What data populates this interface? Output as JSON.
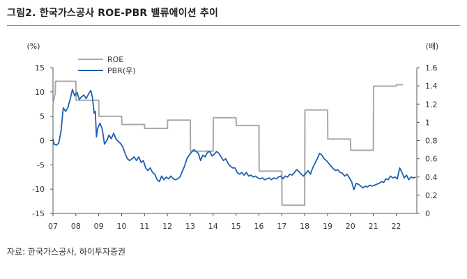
{
  "figure": {
    "title": "그림2.  한국가스공사 ROE-PBR 밸류에이션 추이",
    "source": "자료: 한국가스공사, 하이투자증권"
  },
  "chart_data": {
    "type": "line",
    "left_axis_unit": "(%)",
    "right_axis_unit": "(배)",
    "x_ticks": [
      "07",
      "08",
      "09",
      "10",
      "11",
      "12",
      "13",
      "14",
      "15",
      "16",
      "17",
      "18",
      "19",
      "20",
      "21",
      "22"
    ],
    "y_left": {
      "min": -15,
      "max": 15,
      "ticks": [
        "15",
        "10",
        "5",
        "0",
        "-5",
        "-10",
        "-15"
      ]
    },
    "y_right": {
      "min": 0,
      "max": 1.6,
      "ticks": [
        "1.6",
        "1.4",
        "1.2",
        "1",
        "0.8",
        "0.6",
        "0.4",
        "0.2",
        "0"
      ]
    },
    "legend_position": "top-left",
    "series": [
      {
        "name": "ROE",
        "axis": "left",
        "color": "#a9a9a9",
        "points": [
          [
            2007.0,
            7.5
          ],
          [
            2007.1,
            9.8
          ],
          [
            2007.11,
            12.2
          ],
          [
            2008.0,
            12.2
          ],
          [
            2008.01,
            8.3
          ],
          [
            2009.0,
            8.3
          ],
          [
            2009.01,
            5.0
          ],
          [
            2010.0,
            5.0
          ],
          [
            2010.01,
            3.3
          ],
          [
            2011.0,
            3.3
          ],
          [
            2011.01,
            2.5
          ],
          [
            2012.0,
            2.5
          ],
          [
            2012.01,
            4.2
          ],
          [
            2013.0,
            4.2
          ],
          [
            2013.01,
            -2.2
          ],
          [
            2014.0,
            -2.2
          ],
          [
            2014.01,
            4.7
          ],
          [
            2015.0,
            4.7
          ],
          [
            2015.01,
            3.1
          ],
          [
            2016.0,
            3.1
          ],
          [
            2016.01,
            -6.3
          ],
          [
            2017.0,
            -6.3
          ],
          [
            2017.01,
            -13.3
          ],
          [
            2018.0,
            -13.3
          ],
          [
            2018.01,
            6.3
          ],
          [
            2019.0,
            6.3
          ],
          [
            2019.01,
            0.3
          ],
          [
            2020.0,
            0.3
          ],
          [
            2020.01,
            -2.0
          ],
          [
            2021.0,
            -2.0
          ],
          [
            2021.01,
            11.2
          ],
          [
            2022.0,
            11.2
          ],
          [
            2022.01,
            11.5
          ],
          [
            2022.3,
            11.5
          ]
        ]
      },
      {
        "name": "PBR(우)",
        "axis": "right",
        "color": "#1f5fae",
        "points": [
          [
            2007.0,
            0.82
          ],
          [
            2007.05,
            0.76
          ],
          [
            2007.15,
            0.75
          ],
          [
            2007.25,
            0.77
          ],
          [
            2007.35,
            0.9
          ],
          [
            2007.45,
            1.16
          ],
          [
            2007.55,
            1.12
          ],
          [
            2007.65,
            1.16
          ],
          [
            2007.75,
            1.25
          ],
          [
            2007.85,
            1.36
          ],
          [
            2007.95,
            1.29
          ],
          [
            2008.05,
            1.33
          ],
          [
            2008.15,
            1.25
          ],
          [
            2008.25,
            1.28
          ],
          [
            2008.35,
            1.3
          ],
          [
            2008.45,
            1.26
          ],
          [
            2008.55,
            1.31
          ],
          [
            2008.65,
            1.35
          ],
          [
            2008.72,
            1.28
          ],
          [
            2008.8,
            1.1
          ],
          [
            2008.85,
            1.12
          ],
          [
            2008.9,
            0.84
          ],
          [
            2008.95,
            0.93
          ],
          [
            2009.05,
            0.99
          ],
          [
            2009.15,
            0.93
          ],
          [
            2009.25,
            0.76
          ],
          [
            2009.35,
            0.8
          ],
          [
            2009.45,
            0.86
          ],
          [
            2009.55,
            0.82
          ],
          [
            2009.65,
            0.88
          ],
          [
            2009.75,
            0.82
          ],
          [
            2009.85,
            0.79
          ],
          [
            2009.95,
            0.77
          ],
          [
            2010.05,
            0.73
          ],
          [
            2010.15,
            0.66
          ],
          [
            2010.25,
            0.6
          ],
          [
            2010.35,
            0.58
          ],
          [
            2010.45,
            0.6
          ],
          [
            2010.55,
            0.62
          ],
          [
            2010.65,
            0.58
          ],
          [
            2010.75,
            0.62
          ],
          [
            2010.85,
            0.56
          ],
          [
            2010.95,
            0.58
          ],
          [
            2011.05,
            0.5
          ],
          [
            2011.15,
            0.47
          ],
          [
            2011.25,
            0.5
          ],
          [
            2011.35,
            0.45
          ],
          [
            2011.45,
            0.43
          ],
          [
            2011.55,
            0.37
          ],
          [
            2011.65,
            0.35
          ],
          [
            2011.75,
            0.41
          ],
          [
            2011.85,
            0.37
          ],
          [
            2011.95,
            0.4
          ],
          [
            2012.05,
            0.38
          ],
          [
            2012.15,
            0.41
          ],
          [
            2012.25,
            0.38
          ],
          [
            2012.35,
            0.37
          ],
          [
            2012.45,
            0.38
          ],
          [
            2012.55,
            0.4
          ],
          [
            2012.65,
            0.46
          ],
          [
            2012.75,
            0.52
          ],
          [
            2012.85,
            0.6
          ],
          [
            2012.95,
            0.64
          ],
          [
            2013.05,
            0.67
          ],
          [
            2013.15,
            0.7
          ],
          [
            2013.25,
            0.68
          ],
          [
            2013.35,
            0.66
          ],
          [
            2013.45,
            0.58
          ],
          [
            2013.55,
            0.64
          ],
          [
            2013.65,
            0.62
          ],
          [
            2013.75,
            0.67
          ],
          [
            2013.85,
            0.68
          ],
          [
            2013.95,
            0.63
          ],
          [
            2014.05,
            0.65
          ],
          [
            2014.15,
            0.68
          ],
          [
            2014.25,
            0.66
          ],
          [
            2014.35,
            0.62
          ],
          [
            2014.45,
            0.58
          ],
          [
            2014.55,
            0.6
          ],
          [
            2014.65,
            0.55
          ],
          [
            2014.75,
            0.52
          ],
          [
            2014.85,
            0.5
          ],
          [
            2014.95,
            0.5
          ],
          [
            2015.05,
            0.45
          ],
          [
            2015.15,
            0.43
          ],
          [
            2015.25,
            0.45
          ],
          [
            2015.35,
            0.42
          ],
          [
            2015.45,
            0.45
          ],
          [
            2015.55,
            0.41
          ],
          [
            2015.65,
            0.42
          ],
          [
            2015.75,
            0.4
          ],
          [
            2015.85,
            0.41
          ],
          [
            2015.95,
            0.39
          ],
          [
            2016.05,
            0.38
          ],
          [
            2016.15,
            0.39
          ],
          [
            2016.25,
            0.37
          ],
          [
            2016.35,
            0.38
          ],
          [
            2016.45,
            0.39
          ],
          [
            2016.55,
            0.37
          ],
          [
            2016.65,
            0.39
          ],
          [
            2016.75,
            0.38
          ],
          [
            2016.85,
            0.4
          ],
          [
            2016.95,
            0.41
          ],
          [
            2017.05,
            0.38
          ],
          [
            2017.15,
            0.41
          ],
          [
            2017.25,
            0.4
          ],
          [
            2017.35,
            0.43
          ],
          [
            2017.45,
            0.42
          ],
          [
            2017.55,
            0.45
          ],
          [
            2017.65,
            0.48
          ],
          [
            2017.75,
            0.46
          ],
          [
            2017.85,
            0.43
          ],
          [
            2017.95,
            0.41
          ],
          [
            2018.05,
            0.44
          ],
          [
            2018.15,
            0.47
          ],
          [
            2018.25,
            0.43
          ],
          [
            2018.35,
            0.5
          ],
          [
            2018.45,
            0.55
          ],
          [
            2018.55,
            0.6
          ],
          [
            2018.65,
            0.66
          ],
          [
            2018.75,
            0.64
          ],
          [
            2018.85,
            0.6
          ],
          [
            2018.95,
            0.58
          ],
          [
            2019.05,
            0.55
          ],
          [
            2019.15,
            0.52
          ],
          [
            2019.25,
            0.49
          ],
          [
            2019.35,
            0.47
          ],
          [
            2019.45,
            0.48
          ],
          [
            2019.55,
            0.45
          ],
          [
            2019.65,
            0.44
          ],
          [
            2019.75,
            0.41
          ],
          [
            2019.85,
            0.43
          ],
          [
            2019.95,
            0.39
          ],
          [
            2020.05,
            0.35
          ],
          [
            2020.15,
            0.26
          ],
          [
            2020.25,
            0.33
          ],
          [
            2020.35,
            0.32
          ],
          [
            2020.45,
            0.3
          ],
          [
            2020.55,
            0.28
          ],
          [
            2020.65,
            0.3
          ],
          [
            2020.75,
            0.29
          ],
          [
            2020.85,
            0.31
          ],
          [
            2020.95,
            0.3
          ],
          [
            2021.05,
            0.31
          ],
          [
            2021.15,
            0.32
          ],
          [
            2021.25,
            0.33
          ],
          [
            2021.35,
            0.35
          ],
          [
            2021.45,
            0.34
          ],
          [
            2021.55,
            0.38
          ],
          [
            2021.65,
            0.37
          ],
          [
            2021.75,
            0.41
          ],
          [
            2021.85,
            0.39
          ],
          [
            2021.95,
            0.4
          ],
          [
            2022.05,
            0.38
          ],
          [
            2022.15,
            0.5
          ],
          [
            2022.25,
            0.45
          ],
          [
            2022.35,
            0.39
          ],
          [
            2022.45,
            0.42
          ],
          [
            2022.55,
            0.37
          ],
          [
            2022.65,
            0.4
          ],
          [
            2022.75,
            0.39
          ],
          [
            2022.85,
            0.4
          ]
        ]
      }
    ]
  }
}
